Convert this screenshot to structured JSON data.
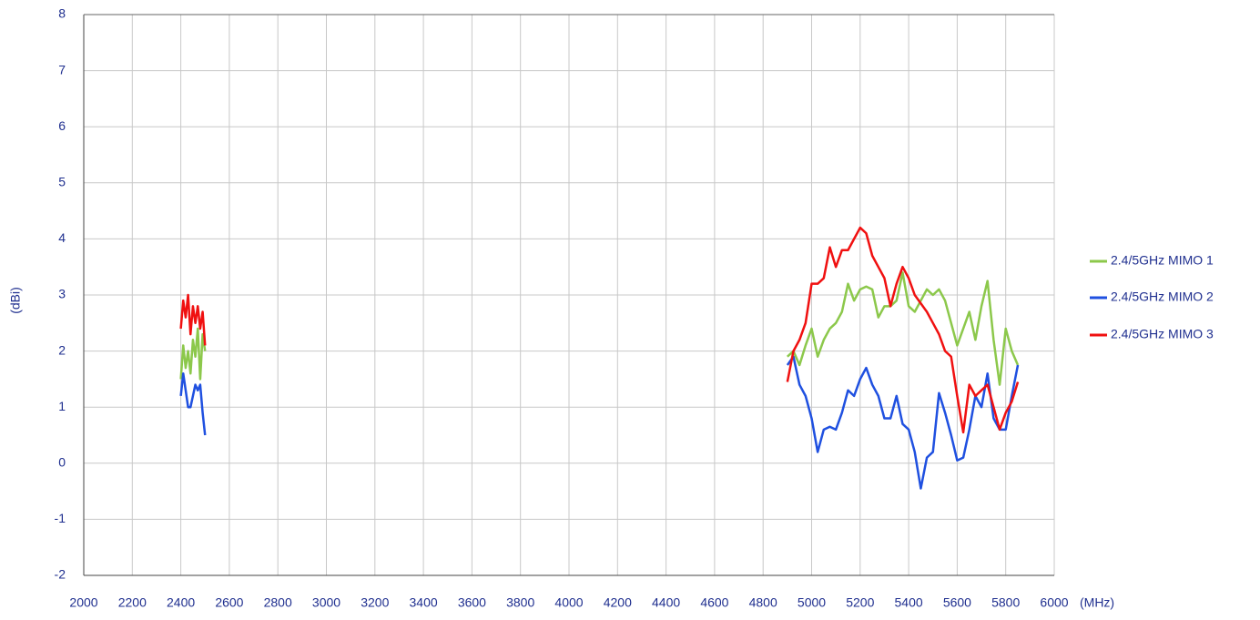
{
  "chart_data": {
    "type": "line",
    "x_label": "(MHz)",
    "y_label": "(dBi)",
    "xlim": [
      2000,
      6000
    ],
    "ylim": [
      -2,
      8
    ],
    "xticks": [
      2000,
      2200,
      2400,
      2600,
      2800,
      3000,
      3200,
      3400,
      3600,
      3800,
      4000,
      4200,
      4400,
      4600,
      4800,
      5000,
      5200,
      5400,
      5600,
      5800,
      6000
    ],
    "yticks": [
      -2,
      -1,
      0,
      1,
      2,
      3,
      4,
      5,
      6,
      7,
      8
    ],
    "grid": true,
    "legend": "right",
    "x": [
      2400,
      2410,
      2420,
      2430,
      2440,
      2450,
      2460,
      2470,
      2480,
      2490,
      2500,
      null,
      4900,
      4925,
      4950,
      4975,
      5000,
      5025,
      5050,
      5075,
      5100,
      5125,
      5150,
      5175,
      5200,
      5225,
      5250,
      5275,
      5300,
      5325,
      5350,
      5375,
      5400,
      5425,
      5450,
      5475,
      5500,
      5525,
      5550,
      5575,
      5600,
      5625,
      5650,
      5675,
      5700,
      5725,
      5750,
      5775,
      5800,
      5825,
      5850
    ],
    "series": [
      {
        "name": "2.4/5GHz MIMO 1",
        "color": "#8cc84b",
        "values": [
          1.5,
          2.1,
          1.7,
          2.0,
          1.6,
          2.2,
          1.9,
          2.4,
          1.5,
          2.3,
          2.0,
          null,
          1.9,
          2.0,
          1.75,
          2.1,
          2.4,
          1.9,
          2.2,
          2.4,
          2.5,
          2.7,
          3.2,
          2.9,
          3.1,
          3.15,
          3.1,
          2.6,
          2.8,
          2.8,
          2.9,
          3.4,
          2.8,
          2.7,
          2.9,
          3.1,
          3.0,
          3.1,
          2.9,
          2.5,
          2.1,
          2.4,
          2.7,
          2.2,
          2.8,
          3.25,
          2.2,
          1.4,
          2.4,
          2.0,
          1.75
        ]
      },
      {
        "name": "2.4/5GHz MIMO 2",
        "color": "#1f50e0",
        "values": [
          1.2,
          1.6,
          1.3,
          1.0,
          1.0,
          1.2,
          1.4,
          1.3,
          1.4,
          0.9,
          0.5,
          null,
          1.75,
          1.9,
          1.4,
          1.2,
          0.8,
          0.2,
          0.6,
          0.65,
          0.6,
          0.9,
          1.3,
          1.2,
          1.5,
          1.7,
          1.4,
          1.2,
          0.8,
          0.8,
          1.2,
          0.7,
          0.6,
          0.2,
          -0.45,
          0.1,
          0.2,
          1.25,
          0.9,
          0.5,
          0.05,
          0.1,
          0.6,
          1.2,
          1.0,
          1.6,
          0.8,
          0.6,
          0.6,
          1.2,
          1.75
        ]
      },
      {
        "name": "2.4/5GHz MIMO 3",
        "color": "#f01010",
        "values": [
          2.4,
          2.9,
          2.6,
          3.0,
          2.3,
          2.8,
          2.5,
          2.8,
          2.4,
          2.7,
          2.1,
          null,
          1.45,
          2.0,
          2.2,
          2.5,
          3.2,
          3.2,
          3.3,
          3.85,
          3.5,
          3.8,
          3.8,
          4.0,
          4.2,
          4.1,
          3.7,
          3.5,
          3.3,
          2.8,
          3.2,
          3.5,
          3.3,
          3.0,
          2.85,
          2.7,
          2.5,
          2.3,
          2.0,
          1.9,
          1.2,
          0.55,
          1.4,
          1.2,
          1.3,
          1.4,
          1.0,
          0.6,
          0.9,
          1.1,
          1.45
        ]
      }
    ]
  }
}
